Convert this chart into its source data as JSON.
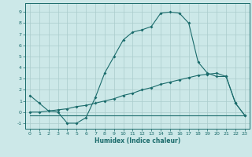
{
  "xlabel": "Humidex (Indice chaleur)",
  "xlim": [
    -0.5,
    23.5
  ],
  "ylim": [
    -1.5,
    9.8
  ],
  "yticks": [
    -1,
    0,
    1,
    2,
    3,
    4,
    5,
    6,
    7,
    8,
    9
  ],
  "xticks": [
    0,
    1,
    2,
    3,
    4,
    5,
    6,
    7,
    8,
    9,
    10,
    11,
    12,
    13,
    14,
    15,
    16,
    17,
    18,
    19,
    20,
    21,
    22,
    23
  ],
  "background_color": "#cce8e8",
  "grid_color": "#aacccc",
  "line_color": "#1a6b6b",
  "line1_x": [
    0,
    1,
    2,
    3,
    4,
    5,
    6,
    7,
    8,
    9,
    10,
    11,
    12,
    13,
    14,
    15,
    16,
    17,
    18,
    19,
    20,
    21,
    22,
    23
  ],
  "line1_y": [
    1.5,
    0.8,
    0.1,
    0.0,
    -1.0,
    -1.0,
    -0.5,
    1.3,
    3.5,
    5.0,
    6.5,
    7.2,
    7.4,
    7.7,
    8.9,
    9.0,
    8.9,
    8.0,
    4.5,
    3.5,
    3.2,
    3.2,
    0.8,
    -0.3
  ],
  "line2_x": [
    0,
    1,
    2,
    3,
    4,
    5,
    6,
    7,
    8,
    9,
    10,
    11,
    12,
    13,
    14,
    15,
    16,
    17,
    18,
    19,
    20,
    21,
    22,
    23
  ],
  "line2_y": [
    0.0,
    0.0,
    0.1,
    0.2,
    0.3,
    0.5,
    0.6,
    0.8,
    1.0,
    1.2,
    1.5,
    1.7,
    2.0,
    2.2,
    2.5,
    2.7,
    2.9,
    3.1,
    3.3,
    3.4,
    3.5,
    3.2,
    0.8,
    -0.3
  ],
  "line3_x": [
    0,
    22,
    23
  ],
  "line3_y": [
    -0.3,
    -0.3,
    -0.3
  ]
}
